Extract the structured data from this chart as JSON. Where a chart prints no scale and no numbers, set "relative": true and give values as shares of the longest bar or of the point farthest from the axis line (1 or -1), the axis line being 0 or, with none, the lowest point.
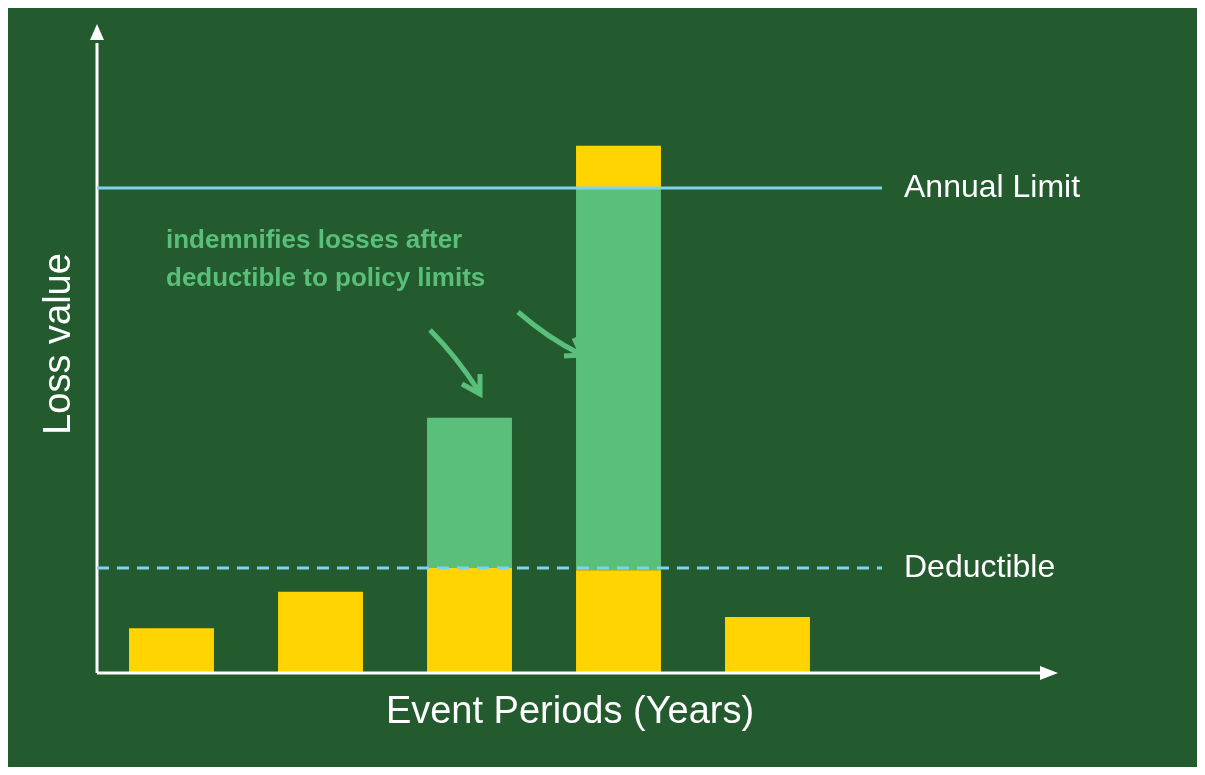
{
  "chart_data": {
    "type": "bar",
    "xlabel": "Event Periods (Years)",
    "ylabel": "Loss value",
    "relative": true,
    "stacked": true,
    "categories": [
      null,
      null,
      null,
      null,
      null
    ],
    "series": [
      {
        "color": "#ffd400",
        "values": [
          0.085,
          0.154,
          0.199,
          0.195,
          0.106
        ]
      },
      {
        "color": "#5bbf7c",
        "values": [
          null,
          null,
          0.285,
          0.725,
          null
        ]
      },
      {
        "color": "#ffd400",
        "values": [
          null,
          null,
          null,
          0.08,
          null
        ]
      }
    ],
    "ref_lines": [
      {
        "axis": "y",
        "value": 0.92,
        "label": "Annual Limit",
        "color": "#7fd3f0",
        "line_style": "solid"
      },
      {
        "axis": "y",
        "value": 0.199,
        "label": "Deductible",
        "color": "#7fd3f0",
        "line_style": "dashed"
      }
    ],
    "annotations": [
      "indemnifies losses after deductible to policy limits"
    ]
  }
}
